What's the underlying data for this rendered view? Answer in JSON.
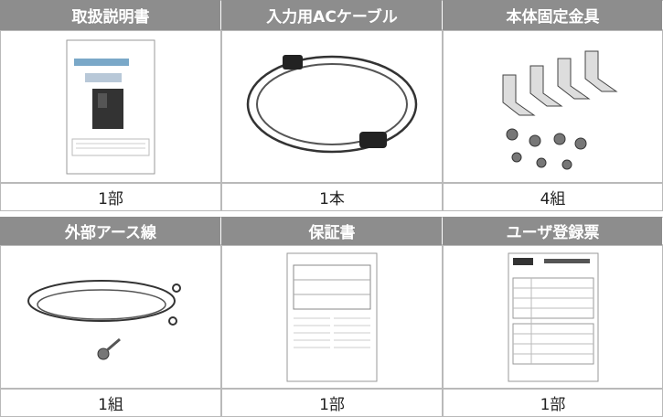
{
  "items": [
    {
      "name": "取扱説明書",
      "quantity": "1部"
    },
    {
      "name": "入力用ACケーブル",
      "quantity": "1本"
    },
    {
      "name": "本体固定金具",
      "quantity": "4組"
    },
    {
      "name": "外部アース線",
      "quantity": "1組"
    },
    {
      "name": "保証書",
      "quantity": "1部"
    },
    {
      "name": "ユーザ登録票",
      "quantity": "1部"
    }
  ]
}
